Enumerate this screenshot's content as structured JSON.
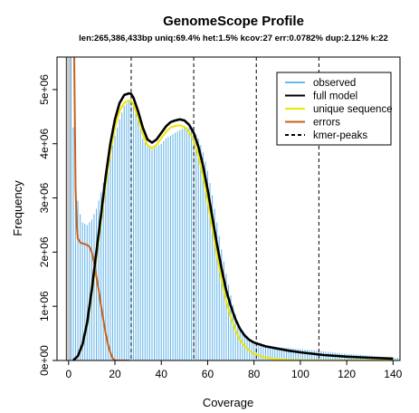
{
  "chart_data": {
    "type": "bar",
    "title": "GenomeScope Profile",
    "subtitle": "len:265,386,433bp uniq:69.4%  het:1.5% kcov:27 err:0.0782%  dup:2.12%  k:22",
    "xlabel": "Coverage",
    "ylabel": "Frequency",
    "xlim": [
      -5,
      143
    ],
    "ylim": [
      0,
      5600000
    ],
    "xticks": [
      0,
      20,
      40,
      60,
      80,
      100,
      120,
      140
    ],
    "xtick_labels": [
      "0",
      "20",
      "40",
      "60",
      "80",
      "100",
      "120",
      "140"
    ],
    "yticks": [
      0,
      1000000,
      2000000,
      3000000,
      4000000,
      5000000
    ],
    "ytick_labels": [
      "0e+00",
      "1e+06",
      "2e+06",
      "3e+06",
      "4e+06",
      "5e+06"
    ],
    "excluded_region": [
      -1,
      1
    ],
    "kmer_peaks": [
      27,
      54,
      81,
      108
    ],
    "observed_bin_width": 1,
    "observed": {
      "x": [
        1,
        2,
        3,
        4,
        5,
        6,
        8,
        10,
        12,
        14,
        16,
        18,
        20,
        22,
        24,
        26,
        27,
        28,
        30,
        32,
        34,
        36,
        38,
        40,
        42,
        44,
        46,
        48,
        50,
        52,
        54,
        56,
        58,
        60,
        62,
        64,
        66,
        68,
        70,
        72,
        74,
        76,
        78,
        80,
        85,
        90,
        95,
        100,
        110,
        120,
        130,
        140
      ],
      "y": [
        5600000,
        4300000,
        3400000,
        2950000,
        2700000,
        2550000,
        2500000,
        2600000,
        2800000,
        3100000,
        3450000,
        3800000,
        4150000,
        4450000,
        4700000,
        4800000,
        4820000,
        4750000,
        4450000,
        4100000,
        3950000,
        3900000,
        3950000,
        4000000,
        4100000,
        4150000,
        4200000,
        4250000,
        4300000,
        4300000,
        4250000,
        4100000,
        3850000,
        3500000,
        3050000,
        2550000,
        2050000,
        1600000,
        1200000,
        850000,
        600000,
        450000,
        350000,
        300000,
        260000,
        240000,
        230000,
        210000,
        170000,
        120000,
        90000,
        50000
      ]
    },
    "series": [
      {
        "name": "full model",
        "color": "#000000",
        "x": [
          2,
          4,
          6,
          8,
          10,
          12,
          14,
          16,
          18,
          20,
          22,
          24,
          26,
          27,
          28,
          30,
          32,
          34,
          36,
          38,
          40,
          42,
          44,
          46,
          48,
          50,
          52,
          54,
          56,
          58,
          60,
          62,
          64,
          66,
          68,
          70,
          72,
          74,
          76,
          78,
          80,
          85,
          90,
          95,
          100,
          110,
          120,
          130,
          140
        ],
        "y": [
          0,
          80000,
          300000,
          700000,
          1300000,
          2000000,
          2700000,
          3400000,
          4000000,
          4450000,
          4750000,
          4900000,
          4930000,
          4920000,
          4850000,
          4600000,
          4300000,
          4080000,
          4020000,
          4080000,
          4200000,
          4320000,
          4400000,
          4430000,
          4450000,
          4430000,
          4350000,
          4200000,
          3950000,
          3600000,
          3150000,
          2650000,
          2150000,
          1700000,
          1300000,
          1000000,
          760000,
          580000,
          460000,
          380000,
          330000,
          260000,
          220000,
          180000,
          150000,
          100000,
          70000,
          50000,
          35000
        ]
      },
      {
        "name": "unique sequence",
        "color": "#f0e500",
        "x": [
          2,
          4,
          6,
          8,
          10,
          12,
          14,
          16,
          18,
          20,
          22,
          24,
          26,
          27,
          28,
          30,
          32,
          34,
          36,
          38,
          40,
          42,
          44,
          46,
          48,
          50,
          52,
          54,
          56,
          58,
          60,
          62,
          64,
          66,
          68,
          70,
          72,
          74,
          76,
          78,
          80,
          85,
          90,
          95,
          100,
          110,
          120,
          130,
          140
        ],
        "y": [
          0,
          70000,
          280000,
          650000,
          1220000,
          1900000,
          2580000,
          3260000,
          3850000,
          4300000,
          4600000,
          4760000,
          4800000,
          4790000,
          4730000,
          4480000,
          4180000,
          3970000,
          3920000,
          3980000,
          4100000,
          4220000,
          4300000,
          4330000,
          4340000,
          4310000,
          4220000,
          4050000,
          3780000,
          3420000,
          2950000,
          2450000,
          1950000,
          1500000,
          1100000,
          800000,
          560000,
          380000,
          260000,
          180000,
          120000,
          50000,
          20000,
          8000,
          3000,
          0,
          0,
          0,
          0
        ]
      },
      {
        "name": "errors",
        "color": "#c8601a",
        "x": [
          2.4,
          3,
          3.5,
          4,
          5,
          6,
          7,
          8,
          9,
          10,
          11,
          12,
          13,
          14,
          15,
          16,
          17,
          18,
          19,
          20,
          21,
          22,
          24,
          26
        ],
        "y": [
          5600000,
          3200000,
          2500000,
          2250000,
          2180000,
          2160000,
          2150000,
          2130000,
          2100000,
          2000000,
          1800000,
          1550000,
          1300000,
          1000000,
          750000,
          500000,
          300000,
          150000,
          40000,
          0,
          0,
          0,
          0,
          0
        ]
      }
    ],
    "legend": {
      "position": "top-right",
      "entries": [
        {
          "label": "observed",
          "color": "#6bb8ea",
          "style": "solid"
        },
        {
          "label": "full model",
          "color": "#000000",
          "style": "solid"
        },
        {
          "label": "unique sequence",
          "color": "#f0e500",
          "style": "solid"
        },
        {
          "label": "errors",
          "color": "#c8601a",
          "style": "solid"
        },
        {
          "label": "kmer-peaks",
          "color": "#000000",
          "style": "dashed"
        }
      ]
    },
    "grid": false
  }
}
